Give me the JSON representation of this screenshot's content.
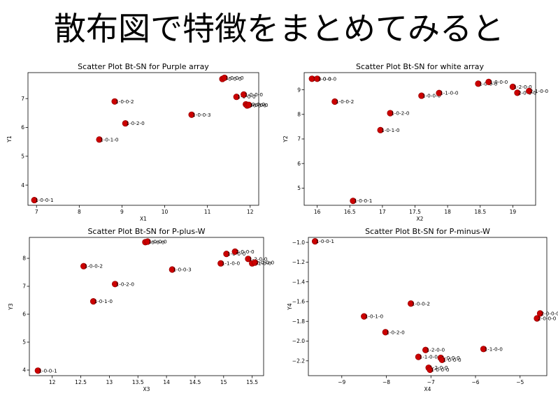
{
  "slide": {
    "title": "散布図で特徴をまとめてみると"
  },
  "colors": {
    "marker": "#cc0000",
    "marker_edge": "#8b0000"
  },
  "chart_data": [
    {
      "type": "scatter",
      "title": "Scatter Plot Bt-SN for Purple array",
      "xlabel": "X1",
      "ylabel": "Y1",
      "xlim": [
        6.8,
        12.2
      ],
      "ylim": [
        3.3,
        7.9
      ],
      "xticks": [
        7,
        8,
        9,
        10,
        11,
        12
      ],
      "yticks": [
        4,
        5,
        6,
        7
      ],
      "points": [
        {
          "x": 6.95,
          "y": 3.48,
          "label": "1-0-0-1"
        },
        {
          "x": 8.47,
          "y": 5.58,
          "label": "1-0-1-0"
        },
        {
          "x": 8.83,
          "y": 6.9,
          "label": "1-0-0-2"
        },
        {
          "x": 9.08,
          "y": 6.14,
          "label": "1-0-2-0"
        },
        {
          "x": 10.63,
          "y": 6.44,
          "label": "1-0-0-3"
        },
        {
          "x": 11.35,
          "y": 7.68,
          "label": "1-0-0-0"
        },
        {
          "x": 11.4,
          "y": 7.72,
          "label": "1-0-0-0"
        },
        {
          "x": 11.68,
          "y": 7.06,
          "label": "1-0-0-0"
        },
        {
          "x": 11.85,
          "y": 7.14,
          "label": "1-0-0-0"
        },
        {
          "x": 11.9,
          "y": 6.8,
          "label": "1-0-0-0"
        },
        {
          "x": 11.93,
          "y": 6.76,
          "label": "1-0-0-0"
        },
        {
          "x": 11.97,
          "y": 6.78,
          "label": "1-0-0-0"
        }
      ]
    },
    {
      "type": "scatter",
      "title": "Scatter Plot Bt-SN for white array",
      "xlabel": "X2",
      "ylabel": "Y2",
      "xlim": [
        15.8,
        19.35
      ],
      "ylim": [
        4.3,
        9.7
      ],
      "xticks": [
        16.0,
        16.5,
        17.0,
        17.5,
        18.0,
        18.5,
        19.0
      ],
      "yticks": [
        5,
        6,
        7,
        8,
        9
      ],
      "points": [
        {
          "x": 15.92,
          "y": 9.45,
          "label": "1-0-0-0"
        },
        {
          "x": 16.0,
          "y": 9.45,
          "label": "1-0-0-0"
        },
        {
          "x": 16.27,
          "y": 8.52,
          "label": "1-0-0-2"
        },
        {
          "x": 16.55,
          "y": 4.48,
          "label": "1-0-0-1"
        },
        {
          "x": 16.97,
          "y": 7.36,
          "label": "1-0-1-0"
        },
        {
          "x": 17.12,
          "y": 8.05,
          "label": "1-0-2-0"
        },
        {
          "x": 17.6,
          "y": 8.76,
          "label": "1-0-0-0"
        },
        {
          "x": 17.87,
          "y": 8.87,
          "label": "1-1-0-0"
        },
        {
          "x": 18.47,
          "y": 9.25,
          "label": "1-0-0-0"
        },
        {
          "x": 18.63,
          "y": 9.32,
          "label": "1-0-0-0"
        },
        {
          "x": 19.0,
          "y": 9.12,
          "label": "1-2-0-0"
        },
        {
          "x": 19.07,
          "y": 8.88,
          "label": "2-0-0-0"
        },
        {
          "x": 19.25,
          "y": 8.95,
          "label": "2-1-0-0"
        }
      ]
    },
    {
      "type": "scatter",
      "title": "Scatter Plot Bt-SN for P-plus-W",
      "xlabel": "X3",
      "ylabel": "Y3",
      "xlim": [
        11.6,
        15.7
      ],
      "ylim": [
        3.8,
        8.75
      ],
      "xticks": [
        12.0,
        12.5,
        13.0,
        13.5,
        14.0,
        14.5,
        15.0,
        15.5
      ],
      "yticks": [
        4,
        5,
        6,
        7,
        8
      ],
      "points": [
        {
          "x": 11.75,
          "y": 3.98,
          "label": "1-0-0-1"
        },
        {
          "x": 12.55,
          "y": 7.72,
          "label": "1-0-0-2"
        },
        {
          "x": 12.72,
          "y": 6.46,
          "label": "1-0-1-0"
        },
        {
          "x": 13.1,
          "y": 7.08,
          "label": "1-0-2-0"
        },
        {
          "x": 13.63,
          "y": 8.58,
          "label": "1-0-0-0"
        },
        {
          "x": 13.67,
          "y": 8.6,
          "label": "1-0-0-0"
        },
        {
          "x": 14.1,
          "y": 7.6,
          "label": "1-0-0-3"
        },
        {
          "x": 14.95,
          "y": 7.82,
          "label": "1-1-0-0"
        },
        {
          "x": 15.05,
          "y": 8.16,
          "label": "1-0-0-0"
        },
        {
          "x": 15.2,
          "y": 8.24,
          "label": "2-0-0-0"
        },
        {
          "x": 15.43,
          "y": 7.98,
          "label": "1-2-0-0"
        },
        {
          "x": 15.5,
          "y": 7.82,
          "label": "2-1-0-0"
        },
        {
          "x": 15.55,
          "y": 7.85,
          "label": "2-0-0-0"
        }
      ]
    },
    {
      "type": "scatter",
      "title": "Scatter Plot Bt-SN for P-minus-W",
      "xlabel": "X4",
      "ylabel": "Y4",
      "xlim": [
        -9.75,
        -4.4
      ],
      "ylim": [
        -2.35,
        -0.95
      ],
      "xticks": [
        -9,
        -8,
        -7,
        -6,
        -5
      ],
      "yticks": [
        -2.2,
        -2.0,
        -1.8,
        -1.6,
        -1.4,
        -1.2,
        -1.0
      ],
      "xtick_labels": [
        "−9",
        "−8",
        "−7",
        "−6",
        "−5"
      ],
      "ytick_labels": [
        "−2.2",
        "−2.0",
        "−1.8",
        "−1.6",
        "−1.4",
        "−1.2",
        "−1.0"
      ],
      "points": [
        {
          "x": -9.6,
          "y": -0.99,
          "label": "1-0-0-1"
        },
        {
          "x": -8.5,
          "y": -1.75,
          "label": "1-0-1-0"
        },
        {
          "x": -8.02,
          "y": -1.91,
          "label": "1-0-2-0"
        },
        {
          "x": -7.45,
          "y": -1.62,
          "label": "1-0-0-2"
        },
        {
          "x": -7.28,
          "y": -2.16,
          "label": "1-1-0-0"
        },
        {
          "x": -7.12,
          "y": -2.09,
          "label": "1-2-0-0"
        },
        {
          "x": -7.05,
          "y": -2.27,
          "label": "1-2-0-0"
        },
        {
          "x": -7.02,
          "y": -2.29,
          "label": "1-0-0-0"
        },
        {
          "x": -6.78,
          "y": -2.17,
          "label": "1-0-0-0"
        },
        {
          "x": -6.75,
          "y": -2.19,
          "label": "1-0-0-0"
        },
        {
          "x": -5.82,
          "y": -2.08,
          "label": "1-1-0-0"
        },
        {
          "x": -4.62,
          "y": -1.77,
          "label": "2-0-0-0"
        },
        {
          "x": -4.55,
          "y": -1.72,
          "label": "2-0-0-0"
        }
      ]
    }
  ]
}
